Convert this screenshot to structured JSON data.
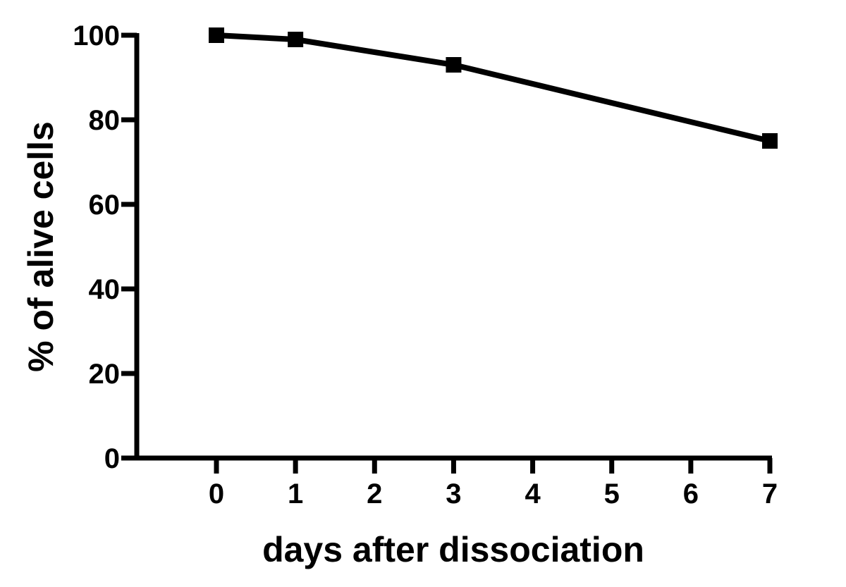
{
  "chart_data": {
    "type": "line",
    "title": "",
    "xlabel": "days after dissociation",
    "ylabel": "% of  alive cells",
    "xlim": [
      -1,
      7
    ],
    "ylim": [
      0,
      100
    ],
    "xticks": [
      0,
      1,
      2,
      3,
      4,
      5,
      6,
      7
    ],
    "yticks": [
      0,
      20,
      40,
      60,
      80,
      100
    ],
    "grid": false,
    "marker": "square",
    "color": "#000000",
    "series": [
      {
        "x": [
          0,
          1,
          3,
          7
        ],
        "values": [
          100,
          99,
          93,
          75
        ]
      }
    ]
  }
}
